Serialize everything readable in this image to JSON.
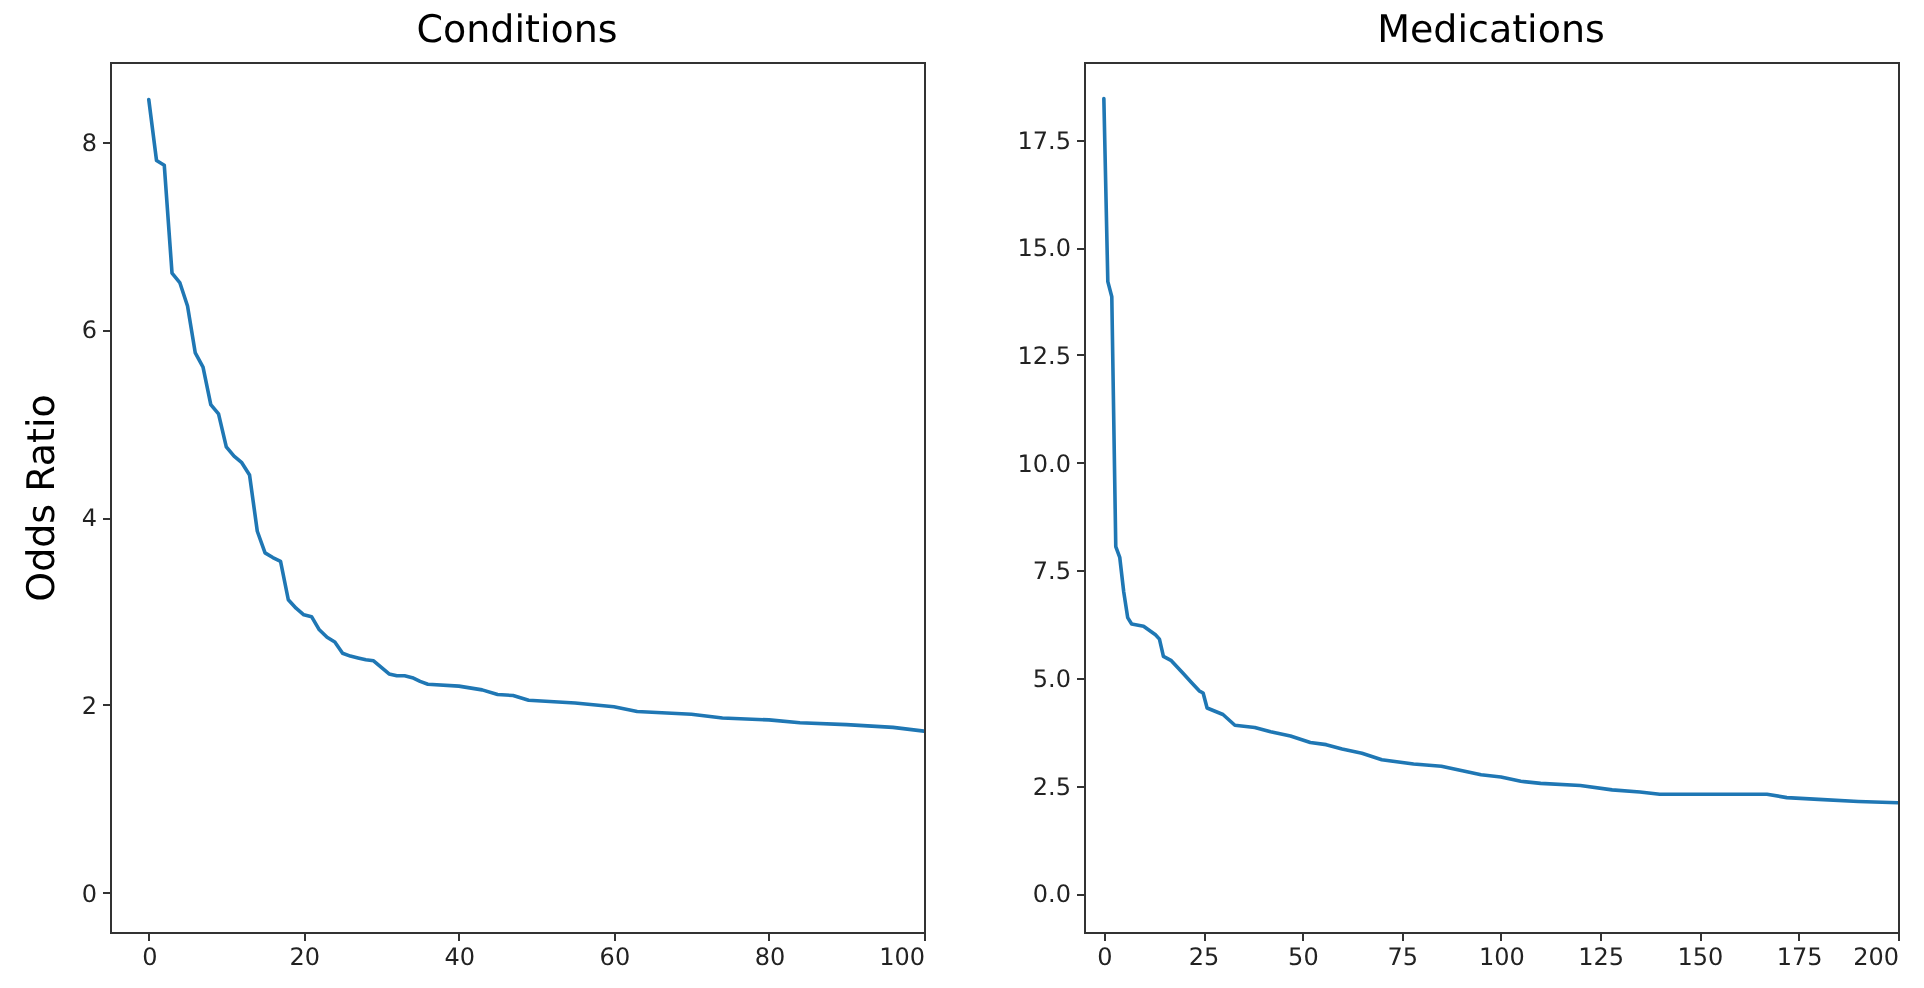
{
  "chart_data": [
    {
      "type": "line",
      "title": "Conditions",
      "ylabel": "Odds Ratio",
      "color": "#1f77b4",
      "xlim": [
        -5,
        100
      ],
      "xticks": [
        0,
        20,
        40,
        60,
        80,
        100
      ],
      "ylim": [
        -0.42,
        8.85
      ],
      "yticks": [
        0,
        2,
        4,
        6,
        8
      ],
      "x": [
        0,
        1,
        2,
        3,
        4,
        5,
        6,
        7,
        8,
        9,
        10,
        11,
        12,
        13,
        14,
        15,
        16,
        17,
        18,
        19,
        20,
        21,
        22,
        23,
        24,
        25,
        26,
        27,
        28,
        29,
        30,
        31,
        32,
        33,
        34,
        35,
        36,
        40,
        43,
        45,
        47,
        49,
        55,
        60,
        63,
        70,
        74,
        80,
        84,
        90,
        96,
        100
      ],
      "values": [
        8.45,
        7.8,
        7.75,
        6.6,
        6.5,
        6.25,
        5.75,
        5.6,
        5.2,
        5.1,
        4.75,
        4.65,
        4.58,
        4.45,
        3.85,
        3.62,
        3.57,
        3.53,
        3.12,
        3.03,
        2.96,
        2.94,
        2.8,
        2.72,
        2.67,
        2.55,
        2.52,
        2.5,
        2.48,
        2.47,
        2.4,
        2.33,
        2.31,
        2.31,
        2.29,
        2.25,
        2.22,
        2.2,
        2.16,
        2.11,
        2.1,
        2.05,
        2.02,
        1.98,
        1.93,
        1.9,
        1.86,
        1.84,
        1.81,
        1.79,
        1.76,
        1.72
      ]
    },
    {
      "type": "line",
      "title": "Medications",
      "color": "#1f77b4",
      "xlim": [
        -5,
        200
      ],
      "xticks": [
        0,
        25,
        50,
        75,
        100,
        125,
        150,
        175,
        200
      ],
      "ylim": [
        -0.9,
        19.3
      ],
      "yticks": [
        {
          "value": 0,
          "label": "0.0"
        },
        2.5,
        {
          "value": 5,
          "label": "5.0"
        },
        7.5,
        {
          "value": 10,
          "label": "10.0"
        },
        12.5,
        {
          "value": 15,
          "label": "15.0"
        },
        17.5
      ],
      "x": [
        0,
        1,
        2,
        3,
        4,
        5,
        6,
        7,
        10,
        13,
        14,
        15,
        17,
        20,
        22,
        24,
        25,
        26,
        30,
        33,
        38,
        42,
        47,
        52,
        56,
        60,
        65,
        70,
        78,
        85,
        90,
        95,
        100,
        105,
        110,
        120,
        128,
        135,
        140,
        150,
        160,
        167,
        172,
        180,
        190,
        200
      ],
      "values": [
        18.45,
        14.2,
        13.85,
        8.05,
        7.8,
        7.0,
        6.4,
        6.25,
        6.2,
        6.0,
        5.9,
        5.5,
        5.4,
        5.1,
        4.9,
        4.7,
        4.65,
        4.3,
        4.15,
        3.9,
        3.85,
        3.75,
        3.65,
        3.5,
        3.45,
        3.35,
        3.25,
        3.1,
        3.0,
        2.95,
        2.85,
        2.75,
        2.7,
        2.6,
        2.55,
        2.5,
        2.4,
        2.35,
        2.3,
        2.3,
        2.3,
        2.3,
        2.22,
        2.18,
        2.13,
        2.1
      ]
    }
  ]
}
